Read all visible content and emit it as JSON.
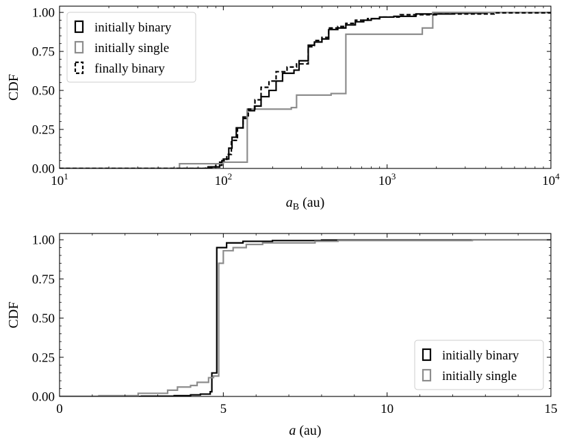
{
  "chart_data": [
    {
      "type": "line",
      "step": true,
      "xscale": "log",
      "xlim": [
        10,
        10000
      ],
      "ylim": [
        0,
        1.04
      ],
      "xticks": [
        {
          "value": 10,
          "base": "10",
          "exp": "1"
        },
        {
          "value": 100,
          "base": "10",
          "exp": "2"
        },
        {
          "value": 1000,
          "base": "10",
          "exp": "3"
        },
        {
          "value": 10000,
          "base": "10",
          "exp": "4"
        }
      ],
      "yticks": [
        {
          "value": 0,
          "label": "0.00"
        },
        {
          "value": 0.25,
          "label": "0.25"
        },
        {
          "value": 0.5,
          "label": "0.50"
        },
        {
          "value": 0.75,
          "label": "0.75"
        },
        {
          "value": 1,
          "label": "1.00"
        }
      ],
      "xlabel": {
        "main": "a",
        "sub": "B",
        "unit": " (au)"
      },
      "ylabel": "CDF",
      "legend_position": "top-left",
      "series": [
        {
          "name": "initially binary",
          "color": "#000000",
          "dash": false,
          "points": [
            [
              10,
              0
            ],
            [
              75,
              0
            ],
            [
              85,
              0.01
            ],
            [
              95,
              0.04
            ],
            [
              100,
              0.06
            ],
            [
              108,
              0.13
            ],
            [
              113,
              0.2
            ],
            [
              120,
              0.26
            ],
            [
              132,
              0.32
            ],
            [
              140,
              0.37
            ],
            [
              155,
              0.4
            ],
            [
              170,
              0.46
            ],
            [
              190,
              0.5
            ],
            [
              210,
              0.56
            ],
            [
              230,
              0.61
            ],
            [
              270,
              0.63
            ],
            [
              290,
              0.69
            ],
            [
              330,
              0.79
            ],
            [
              360,
              0.81
            ],
            [
              400,
              0.83
            ],
            [
              440,
              0.89
            ],
            [
              500,
              0.9
            ],
            [
              560,
              0.92
            ],
            [
              640,
              0.94
            ],
            [
              720,
              0.95
            ],
            [
              800,
              0.96
            ],
            [
              900,
              0.97
            ],
            [
              1100,
              0.975
            ],
            [
              1500,
              0.99
            ],
            [
              2500,
              0.995
            ],
            [
              4000,
              1.0
            ],
            [
              10000,
              1.0
            ]
          ]
        },
        {
          "name": "initially single",
          "color": "#8c8c8c",
          "dash": false,
          "points": [
            [
              10,
              0
            ],
            [
              54,
              0
            ],
            [
              54,
              0.03
            ],
            [
              100,
              0.04
            ],
            [
              140,
              0.04
            ],
            [
              140,
              0.38
            ],
            [
              260,
              0.39
            ],
            [
              280,
              0.47
            ],
            [
              455,
              0.48
            ],
            [
              560,
              0.48
            ],
            [
              560,
              0.86
            ],
            [
              1640,
              0.86
            ],
            [
              1640,
              0.9
            ],
            [
              1900,
              0.9
            ],
            [
              1900,
              1.0
            ],
            [
              10000,
              1.0
            ]
          ]
        },
        {
          "name": "finally binary",
          "color": "#000000",
          "dash": true,
          "points": [
            [
              10,
              0
            ],
            [
              70,
              0
            ],
            [
              78,
              0.01
            ],
            [
              90,
              0.02
            ],
            [
              98,
              0.05
            ],
            [
              105,
              0.09
            ],
            [
              112,
              0.18
            ],
            [
              122,
              0.26
            ],
            [
              132,
              0.33
            ],
            [
              142,
              0.38
            ],
            [
              156,
              0.44
            ],
            [
              170,
              0.52
            ],
            [
              190,
              0.56
            ],
            [
              210,
              0.62
            ],
            [
              245,
              0.65
            ],
            [
              280,
              0.67
            ],
            [
              330,
              0.78
            ],
            [
              360,
              0.82
            ],
            [
              400,
              0.84
            ],
            [
              440,
              0.9
            ],
            [
              500,
              0.91
            ],
            [
              560,
              0.93
            ],
            [
              640,
              0.95
            ],
            [
              760,
              0.96
            ],
            [
              900,
              0.97
            ],
            [
              1200,
              0.985
            ],
            [
              2000,
              0.99
            ],
            [
              4500,
              0.997
            ],
            [
              10000,
              1.0
            ]
          ]
        }
      ]
    },
    {
      "type": "line",
      "step": true,
      "xscale": "linear",
      "xlim": [
        0,
        15
      ],
      "ylim": [
        0,
        1.04
      ],
      "xticks": [
        {
          "value": 0,
          "label": "0"
        },
        {
          "value": 5,
          "label": "5"
        },
        {
          "value": 10,
          "label": "10"
        },
        {
          "value": 15,
          "label": "15"
        }
      ],
      "yticks": [
        {
          "value": 0,
          "label": "0.00"
        },
        {
          "value": 0.25,
          "label": "0.25"
        },
        {
          "value": 0.5,
          "label": "0.50"
        },
        {
          "value": 0.75,
          "label": "0.75"
        },
        {
          "value": 1,
          "label": "1.00"
        }
      ],
      "xlabel": {
        "main": "a",
        "sub": "",
        "unit": " (au)"
      },
      "ylabel": "CDF",
      "legend_position": "bottom-right",
      "series": [
        {
          "name": "initially binary",
          "color": "#000000",
          "dash": false,
          "points": [
            [
              0,
              0
            ],
            [
              2.5,
              0.002
            ],
            [
              3.5,
              0.005
            ],
            [
              4.0,
              0.01
            ],
            [
              4.3,
              0.015
            ],
            [
              4.6,
              0.03
            ],
            [
              4.65,
              0.15
            ],
            [
              4.8,
              0.15
            ],
            [
              4.8,
              0.95
            ],
            [
              5.1,
              0.98
            ],
            [
              5.6,
              0.99
            ],
            [
              6.5,
              0.995
            ],
            [
              8.0,
              0.998
            ],
            [
              12.6,
              1.0
            ],
            [
              15,
              1.0
            ]
          ]
        },
        {
          "name": "initially single",
          "color": "#8c8c8c",
          "dash": false,
          "points": [
            [
              0,
              0
            ],
            [
              1.2,
              0.005
            ],
            [
              2.4,
              0.02
            ],
            [
              3.3,
              0.04
            ],
            [
              3.6,
              0.06
            ],
            [
              4.0,
              0.07
            ],
            [
              4.2,
              0.09
            ],
            [
              4.55,
              0.12
            ],
            [
              4.7,
              0.13
            ],
            [
              4.86,
              0.13
            ],
            [
              4.86,
              0.85
            ],
            [
              5.0,
              0.93
            ],
            [
              5.3,
              0.95
            ],
            [
              5.7,
              0.97
            ],
            [
              6.2,
              0.98
            ],
            [
              7.8,
              0.99
            ],
            [
              8.5,
              0.995
            ],
            [
              12.6,
              1.0
            ],
            [
              15,
              1.0
            ]
          ]
        }
      ]
    }
  ]
}
